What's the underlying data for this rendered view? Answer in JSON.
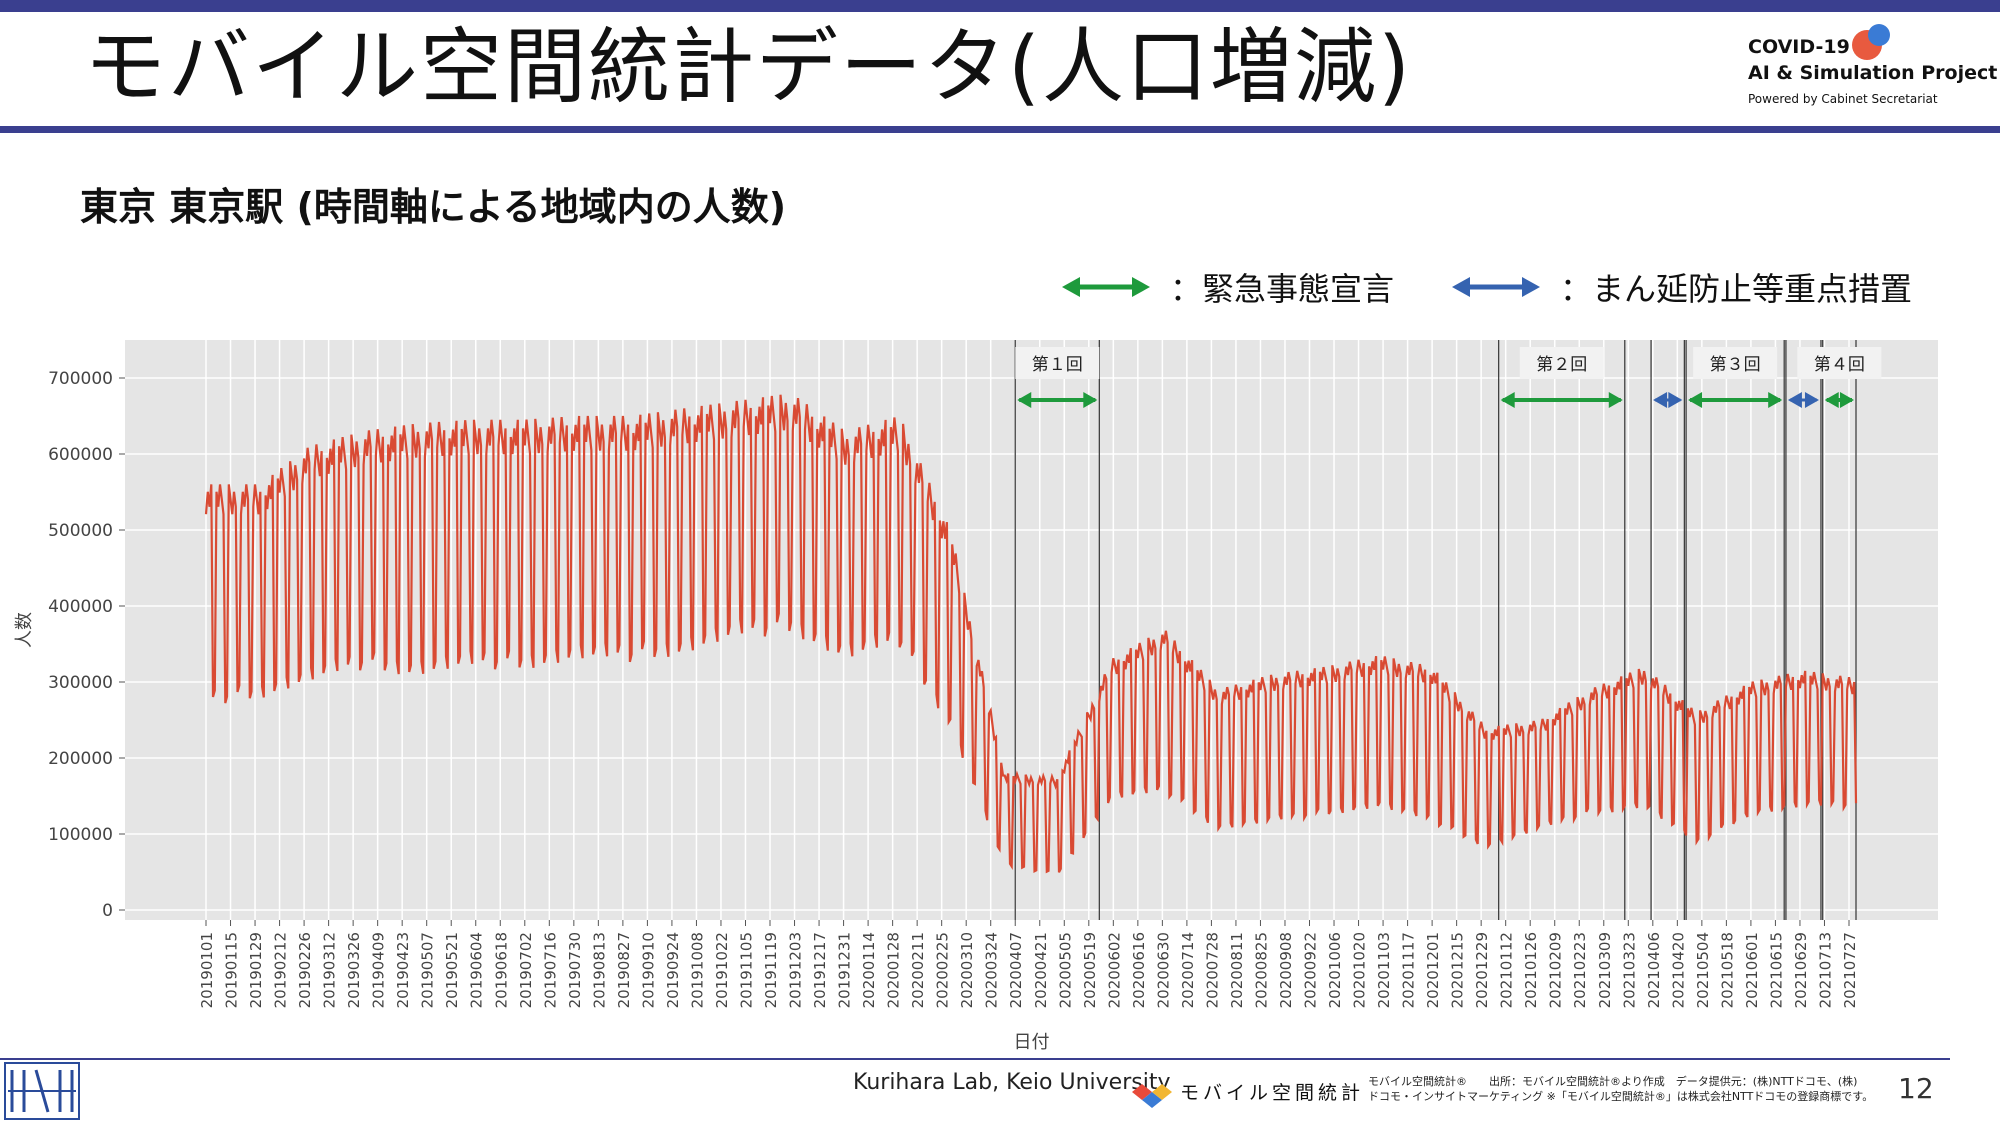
{
  "header": {
    "title": "モバイル空間統計データ(人口増減)",
    "logo_line1": "COVID-19",
    "logo_line2": "AI & Simulation Project",
    "logo_line3": "Powered by Cabinet Secretariat"
  },
  "subtitle": "東京 東京駅 (時間軸による地域内の人数)",
  "legend": {
    "emergency_label": "：緊急事態宣言",
    "priority_label": "：まん延防止等重点措置",
    "emergency_color": "#1e9a3c",
    "priority_color": "#3563b0"
  },
  "chart_data": {
    "type": "line",
    "xlabel": "日付",
    "ylabel": "人数",
    "ylim": [
      0,
      750000
    ],
    "yticks": [
      0,
      100000,
      200000,
      300000,
      400000,
      500000,
      600000,
      700000
    ],
    "ytick_labels": [
      "0",
      "100000",
      "200000",
      "300000",
      "400000",
      "500000",
      "600000",
      "700000"
    ],
    "x_tick_labels": [
      "20190101",
      "20190115",
      "20190129",
      "20190212",
      "20190226",
      "20190312",
      "20190326",
      "20190409",
      "20190423",
      "20190507",
      "20190521",
      "20190604",
      "20190618",
      "20190702",
      "20190716",
      "20190730",
      "20190813",
      "20190827",
      "20190910",
      "20190924",
      "20191008",
      "20191022",
      "20191105",
      "20191119",
      "20191203",
      "20191217",
      "20191231",
      "20200114",
      "20200128",
      "20200211",
      "20200225",
      "20200310",
      "20200324",
      "20200407",
      "20200421",
      "20200505",
      "20200519",
      "20200602",
      "20200616",
      "20200630",
      "20200714",
      "20200728",
      "20200811",
      "20200825",
      "20200908",
      "20200922",
      "20201006",
      "20201020",
      "20201103",
      "20201117",
      "20201201",
      "20201215",
      "20201229",
      "20210112",
      "20210126",
      "20210209",
      "20210223",
      "20210309",
      "20210323",
      "20210406",
      "20210420",
      "20210504",
      "20210518",
      "20210601",
      "20210615",
      "20210629",
      "20210713",
      "20210727"
    ],
    "line_color": "#d94a33",
    "background": "#e5e5e5",
    "grid": true,
    "series": [
      {
        "name": "",
        "dates": [
          "20190101",
          "20190201",
          "20190301",
          "20190401",
          "20190501",
          "20190601",
          "20190701",
          "20190801",
          "20190901",
          "20191001",
          "20191101",
          "20191201",
          "20200101",
          "20200201",
          "20200301",
          "20200401",
          "20200501",
          "20200601",
          "20200701",
          "20200801",
          "20200901",
          "20201001",
          "20201101",
          "20201201",
          "20210101",
          "20210201",
          "20210301",
          "20210401",
          "20210501",
          "20210601",
          "20210701",
          "20210731"
        ],
        "weekday_high": [
          560000,
          560000,
          610000,
          630000,
          640000,
          645000,
          645000,
          650000,
          650000,
          660000,
          670000,
          680000,
          630000,
          650000,
          500000,
          180000,
          175000,
          330000,
          370000,
          290000,
          310000,
          320000,
          335000,
          320000,
          240000,
          250000,
          290000,
          320000,
          260000,
          300000,
          315000,
          305000
        ],
        "weekend_low": [
          280000,
          290000,
          310000,
          330000,
          320000,
          330000,
          330000,
          340000,
          340000,
          350000,
          370000,
          380000,
          340000,
          360000,
          250000,
          60000,
          48000,
          150000,
          160000,
          110000,
          120000,
          130000,
          140000,
          120000,
          85000,
          110000,
          130000,
          140000,
          90000,
          130000,
          140000,
          140000
        ]
      }
    ],
    "event_markers": [
      {
        "label": "第１回",
        "type": "emergency",
        "start": "20200407",
        "end": "20200525"
      },
      {
        "label": "第２回",
        "type": "emergency",
        "start": "20210108",
        "end": "20210321"
      },
      {
        "type": "priority",
        "start": "20210405",
        "end": "20210424"
      },
      {
        "label": "第３回",
        "type": "emergency",
        "start": "20210425",
        "end": "20210620"
      },
      {
        "type": "priority",
        "start": "20210621",
        "end": "20210711"
      },
      {
        "label": "第４回",
        "type": "emergency",
        "start": "20210712",
        "end": "20210731"
      }
    ]
  },
  "footer": {
    "credit": "Kurihara Lab, Keio University",
    "brand": "モバイル空間統計",
    "note_line1": "モバイル空間統計®　　出所：モバイル空間統計®より作成　データ提供元：(株)NTTドコモ、(株)",
    "note_line2": "ドコモ・インサイトマーケティング ※「モバイル空間統計®」は株式会社NTTドコモの登録商標です。",
    "page_number": "12"
  }
}
